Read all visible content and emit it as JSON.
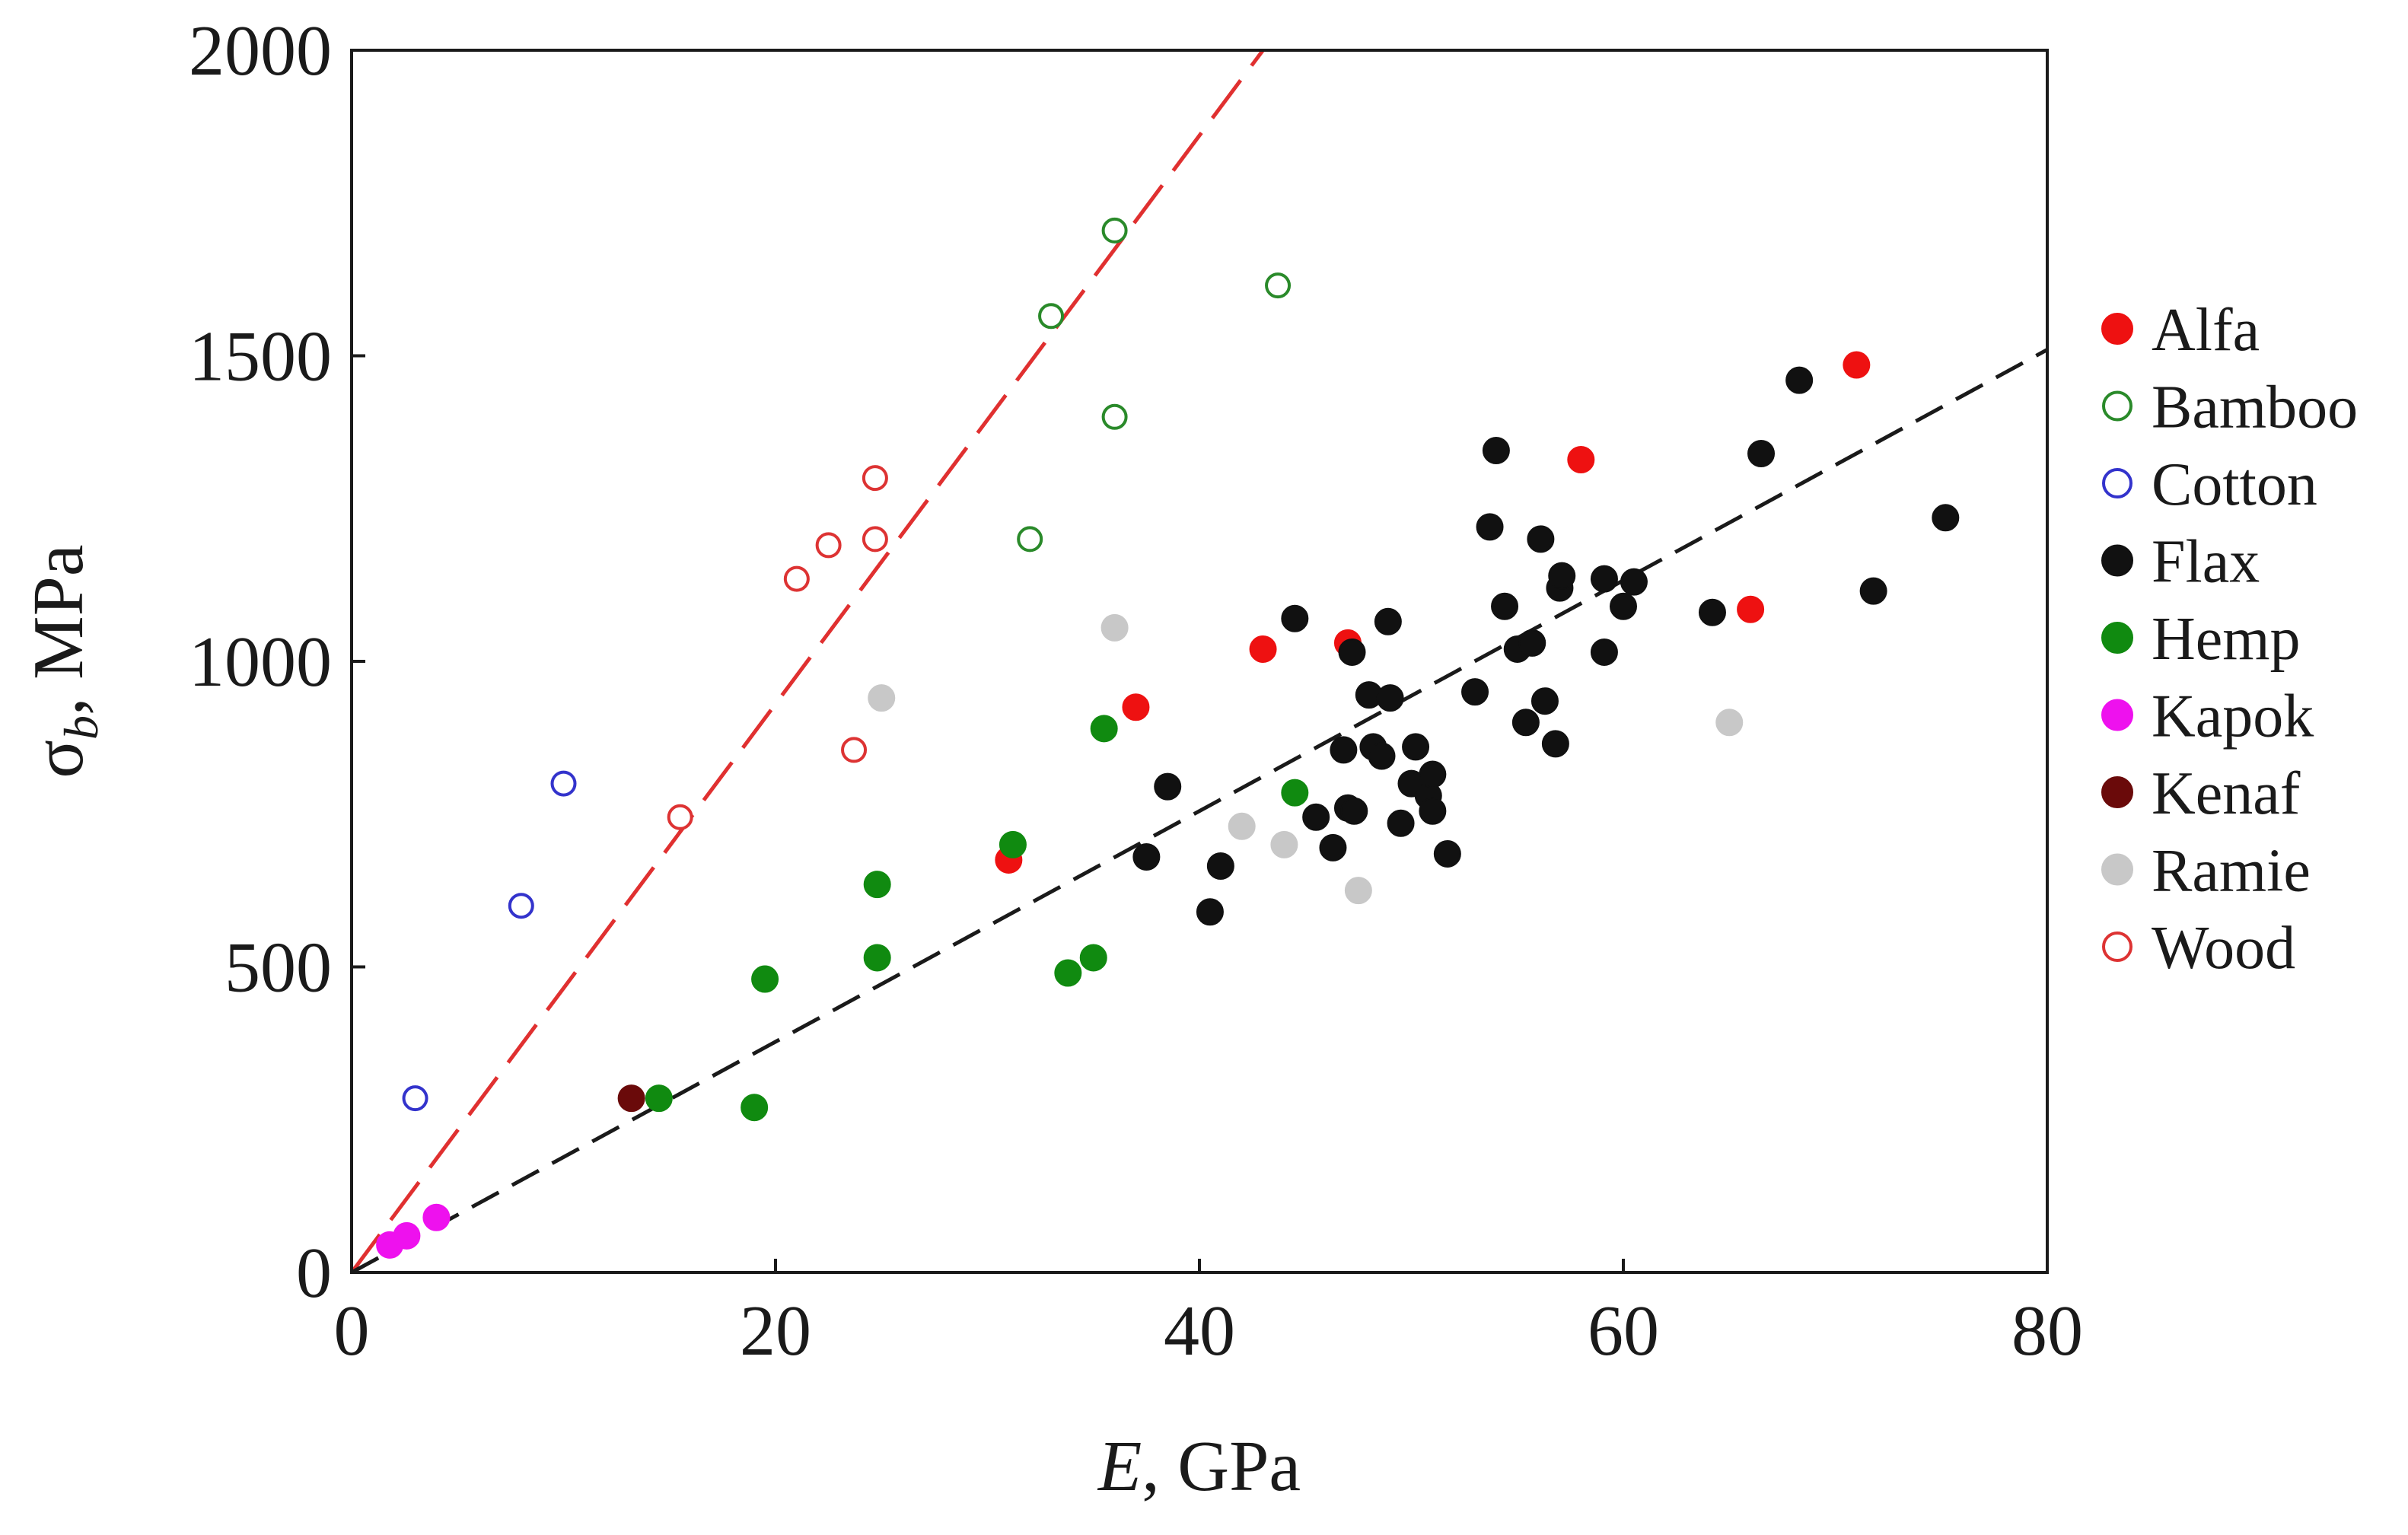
{
  "chart_data": {
    "type": "scatter",
    "title": "",
    "xlabel": {
      "italic": "E",
      "rest": ", GPa"
    },
    "ylabel": {
      "symbol": "σ",
      "subscript": "b",
      "rest": ", MPa"
    },
    "xlim": [
      0,
      80
    ],
    "ylim": [
      0,
      2000
    ],
    "xticks": [
      0,
      20,
      40,
      60,
      80
    ],
    "yticks": [
      0,
      500,
      1000,
      1500,
      2000
    ],
    "xtick_labels": [
      "0",
      "20",
      "40",
      "60",
      "80"
    ],
    "ytick_labels": [
      "0",
      "500",
      "1000",
      "1500",
      "2000"
    ],
    "grid": false,
    "legend_position": "right",
    "trend_lines": [
      {
        "name": "upper-trend",
        "color": "#e03030",
        "dash": "long",
        "x": [
          0,
          43
        ],
        "y": [
          0,
          2000
        ]
      },
      {
        "name": "lower-trend",
        "color": "#1a1a1a",
        "dash": "medium",
        "x": [
          0,
          80
        ],
        "y": [
          0,
          1510
        ]
      }
    ],
    "series": [
      {
        "name": "Alfa",
        "color": "#ee1111",
        "filled": true,
        "points": [
          [
            31,
            675
          ],
          [
            37,
            925
          ],
          [
            43,
            1020
          ],
          [
            47,
            1030
          ],
          [
            58,
            1330
          ],
          [
            66,
            1085
          ],
          [
            71,
            1485
          ]
        ]
      },
      {
        "name": "Bamboo",
        "color": "#2a8a2a",
        "filled": false,
        "points": [
          [
            32,
            1200
          ],
          [
            33,
            1565
          ],
          [
            36,
            1400
          ],
          [
            36,
            1705
          ],
          [
            43.7,
            1615
          ]
        ]
      },
      {
        "name": "Cotton",
        "color": "#3333cc",
        "filled": false,
        "points": [
          [
            3,
            285
          ],
          [
            8,
            600
          ],
          [
            10,
            800
          ]
        ]
      },
      {
        "name": "Flax",
        "color": "#111111",
        "filled": true,
        "points": [
          [
            37.5,
            680
          ],
          [
            38.5,
            795
          ],
          [
            40.5,
            590
          ],
          [
            41,
            665
          ],
          [
            44.5,
            1070
          ],
          [
            45.5,
            745
          ],
          [
            46.3,
            695
          ],
          [
            46.8,
            855
          ],
          [
            47,
            760
          ],
          [
            47.2,
            1015
          ],
          [
            47.3,
            755
          ],
          [
            48,
            945
          ],
          [
            48.2,
            860
          ],
          [
            48.6,
            845
          ],
          [
            48.9,
            1065
          ],
          [
            49,
            940
          ],
          [
            49.5,
            735
          ],
          [
            50,
            800
          ],
          [
            50.2,
            860
          ],
          [
            50.8,
            780
          ],
          [
            51,
            755
          ],
          [
            51,
            815
          ],
          [
            51.7,
            685
          ],
          [
            53,
            950
          ],
          [
            53.7,
            1220
          ],
          [
            54,
            1345
          ],
          [
            54.4,
            1090
          ],
          [
            55,
            1020
          ],
          [
            55.4,
            900
          ],
          [
            55.7,
            1030
          ],
          [
            56.1,
            1200
          ],
          [
            56.3,
            935
          ],
          [
            56.8,
            865
          ],
          [
            57,
            1120
          ],
          [
            57.1,
            1140
          ],
          [
            59.1,
            1135
          ],
          [
            59.1,
            1015
          ],
          [
            60,
            1090
          ],
          [
            60.5,
            1130
          ],
          [
            64.2,
            1080
          ],
          [
            66.5,
            1340
          ],
          [
            68.3,
            1460
          ],
          [
            71.8,
            1115
          ],
          [
            75.2,
            1235
          ]
        ]
      },
      {
        "name": "Hemp",
        "color": "#108a10",
        "filled": true,
        "points": [
          [
            14.5,
            285
          ],
          [
            19,
            270
          ],
          [
            19.5,
            480
          ],
          [
            24.8,
            515
          ],
          [
            24.8,
            635
          ],
          [
            31.2,
            700
          ],
          [
            33.8,
            490
          ],
          [
            35,
            515
          ],
          [
            35.5,
            890
          ],
          [
            44.5,
            785
          ]
        ]
      },
      {
        "name": "Kapok",
        "color": "#ee11ee",
        "filled": true,
        "points": [
          [
            1.8,
            45
          ],
          [
            2.6,
            60
          ],
          [
            4,
            90
          ]
        ]
      },
      {
        "name": "Kenaf",
        "color": "#6a0a0a",
        "filled": true,
        "points": [
          [
            13.2,
            285
          ]
        ]
      },
      {
        "name": "Ramie",
        "color": "#c8c8c8",
        "filled": true,
        "points": [
          [
            25,
            940
          ],
          [
            36,
            1055
          ],
          [
            42,
            730
          ],
          [
            44,
            700
          ],
          [
            47.5,
            625
          ],
          [
            65,
            900
          ]
        ]
      },
      {
        "name": "Wood",
        "color": "#dd3333",
        "filled": false,
        "points": [
          [
            15.5,
            745
          ],
          [
            21,
            1135
          ],
          [
            22.5,
            1190
          ],
          [
            23.7,
            855
          ],
          [
            24.7,
            1200
          ],
          [
            24.7,
            1300
          ]
        ]
      }
    ]
  }
}
